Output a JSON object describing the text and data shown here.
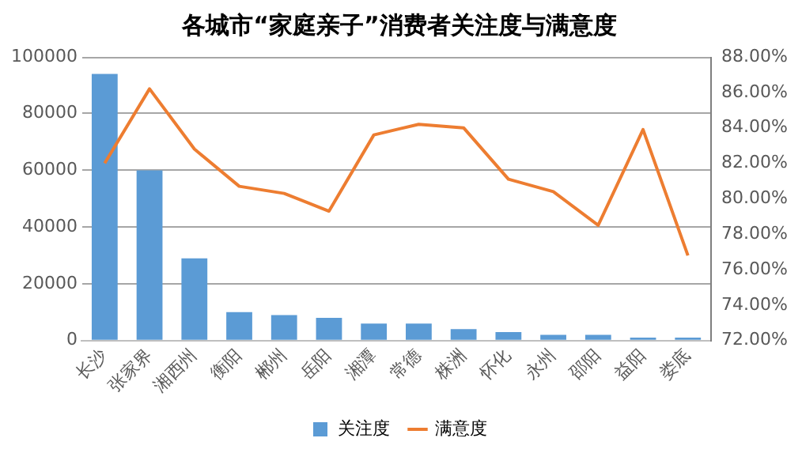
{
  "chart_data": {
    "type": "bar",
    "title": "各城市“家庭亲子”消费者关注度与满意度",
    "categories": [
      "长沙",
      "张家界",
      "湘西州",
      "衡阳",
      "郴州",
      "岳阳",
      "湘潭",
      "常德",
      "株洲",
      "怀化",
      "永州",
      "邵阳",
      "益阳",
      "娄底"
    ],
    "series": [
      {
        "name": "关注度",
        "color": "#5b9bd5",
        "values": [
          94000,
          60000,
          29000,
          10000,
          9000,
          8000,
          6000,
          6000,
          4000,
          3000,
          2000,
          2000,
          1000,
          1000
        ]
      },
      {
        "name": "满意度",
        "type": "line",
        "axis": "y2",
        "color": "#ed7d31",
        "values": [
          82.0,
          86.2,
          82.8,
          80.7,
          80.3,
          79.3,
          83.6,
          84.2,
          84.0,
          81.1,
          80.4,
          78.5,
          83.9,
          76.8
        ]
      }
    ],
    "ylim": [
      0,
      100000
    ],
    "yticks": [
      0,
      20000,
      40000,
      60000,
      80000,
      100000
    ],
    "y2lim": [
      72,
      88
    ],
    "y2ticks": [
      {
        "value": 72,
        "label": "72.00%"
      },
      {
        "value": 74,
        "label": "74.00%"
      },
      {
        "value": 76,
        "label": "76.00%"
      },
      {
        "value": 78,
        "label": "78.00%"
      },
      {
        "value": 80,
        "label": "80.00%"
      },
      {
        "value": 82,
        "label": "82.00%"
      },
      {
        "value": 84,
        "label": "84.00%"
      },
      {
        "value": 86,
        "label": "86.00%"
      },
      {
        "value": 88,
        "label": "88.00%"
      }
    ],
    "grid": "y",
    "legend": "bottom",
    "marker": "none"
  }
}
